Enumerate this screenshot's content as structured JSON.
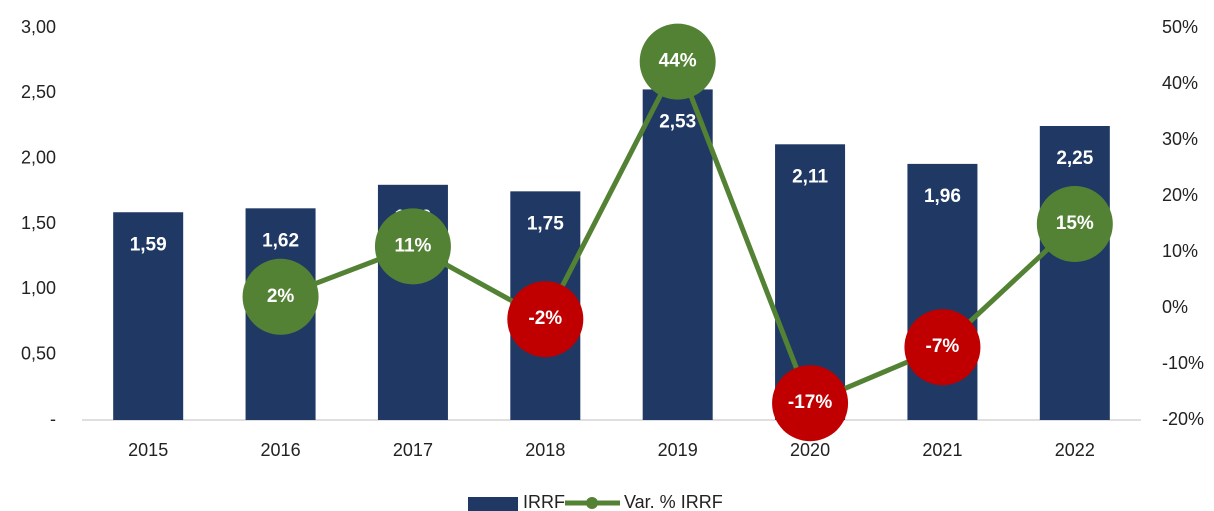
{
  "chart_data": {
    "type": "bar_line",
    "categories": [
      "2015",
      "2016",
      "2017",
      "2018",
      "2019",
      "2020",
      "2021",
      "2022"
    ],
    "series": [
      {
        "name": "IRRF",
        "type": "bar",
        "color": "#1f3864",
        "values": [
          1.59,
          1.62,
          1.8,
          1.75,
          2.53,
          2.11,
          1.96,
          2.25
        ],
        "value_labels": [
          "1,59",
          "1,62",
          "1,80",
          "1,75",
          "2,53",
          "2,11",
          "1,96",
          "2,25"
        ]
      },
      {
        "name": "Var. % IRRF",
        "type": "line",
        "axis": "y2",
        "color": "#548235",
        "negative_color": "#c00000",
        "values": [
          null,
          2,
          11,
          -2,
          44,
          -17,
          -7,
          15
        ],
        "value_labels": [
          null,
          "2%",
          "11%",
          "-2%",
          "44%",
          "-17%",
          "-7%",
          "15%"
        ]
      }
    ],
    "ylim": [
      0,
      3
    ],
    "yticks": [
      {
        "value": 0,
        "label": "-"
      },
      {
        "value": 0.5,
        "label": "0,50"
      },
      {
        "value": 1,
        "label": "1,00"
      },
      {
        "value": 1.5,
        "label": "1,50"
      },
      {
        "value": 2,
        "label": "2,00"
      },
      {
        "value": 2.5,
        "label": "2,50"
      },
      {
        "value": 3,
        "label": "3,00"
      }
    ],
    "y2lim": [
      -20,
      50
    ],
    "y2ticks": [
      {
        "value": -20,
        "label": "-20%"
      },
      {
        "value": -10,
        "label": "-10%"
      },
      {
        "value": 0,
        "label": "0%"
      },
      {
        "value": 10,
        "label": "10%"
      },
      {
        "value": 20,
        "label": "20%"
      },
      {
        "value": 30,
        "label": "30%"
      },
      {
        "value": 40,
        "label": "40%"
      },
      {
        "value": 50,
        "label": "50%"
      }
    ],
    "legend": "bottom"
  }
}
